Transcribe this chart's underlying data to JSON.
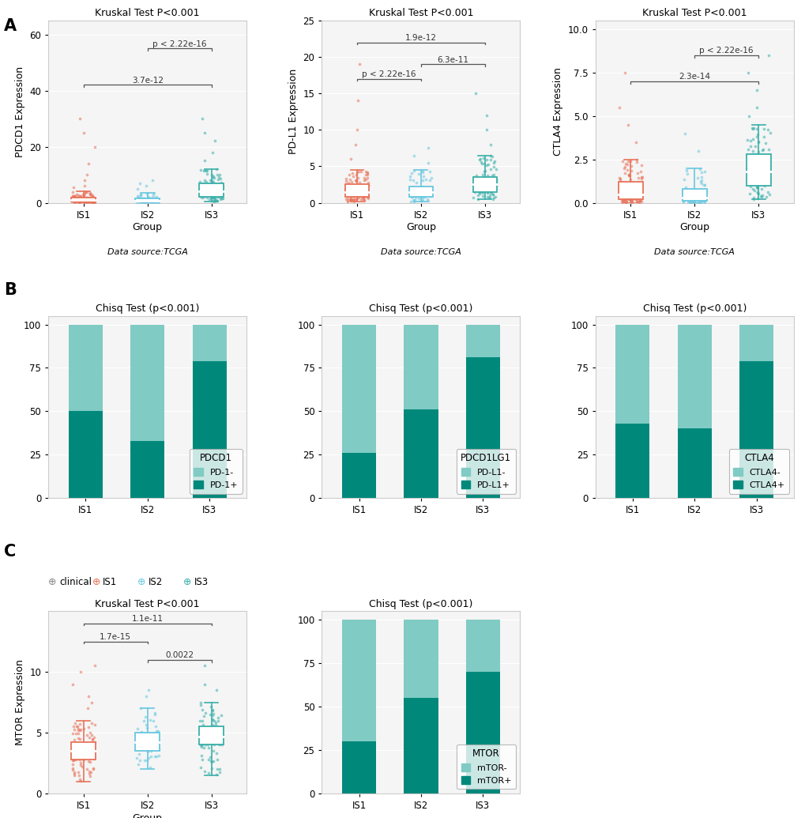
{
  "panel_A_title": "Kruskal Test P<0.001",
  "panel_B_title": "Chisq Test (p<0.001)",
  "panel_C_box_title": "Kruskal Test P<0.001",
  "panel_C_bar_title": "Chisq Test (p<0.001)",
  "groups": [
    "IS1",
    "IS2",
    "IS3"
  ],
  "colors": {
    "IS1": "#E8735A",
    "IS2": "#67C7E0",
    "IS3": "#3AAFA9"
  },
  "bar_pos_color": "#00897B",
  "bar_neg_color": "#80CBC4",
  "ylabel_A1": "PDCD1 Expression",
  "ylabel_A2": "PD-L1 Expression",
  "ylabel_A3": "CTLA4 Expression",
  "ylabel_C": "MTOR Expression",
  "xlabel": "Group",
  "datasource": "Data source:TCGA",
  "PDCD1_sig": [
    {
      "group1": "IS1",
      "group2": "IS3",
      "p": "3.7e-12",
      "y": 42,
      "level": 0
    },
    {
      "group1": "IS2",
      "group2": "IS3",
      "p": "p < 2.22e-16",
      "y": 55,
      "level": 1
    }
  ],
  "PDL1_sig": [
    {
      "group1": "IS1",
      "group2": "IS2",
      "p": "p < 2.22e-16",
      "y": 17,
      "level": 0
    },
    {
      "group1": "IS2",
      "group2": "IS3",
      "p": "6.3e-11",
      "y": 19,
      "level": 1
    },
    {
      "group1": "IS1",
      "group2": "IS3",
      "p": "1.9e-12",
      "y": 22,
      "level": 2
    }
  ],
  "CTLA4_sig": [
    {
      "group1": "IS1",
      "group2": "IS3",
      "p": "2.3e-14",
      "y": 7.0,
      "level": 0
    },
    {
      "group1": "IS2",
      "group2": "IS3",
      "p": "p < 2.22e-16",
      "y": 8.5,
      "level": 1
    }
  ],
  "MTOR_sig": [
    {
      "group1": "IS2",
      "group2": "IS3",
      "p": "0.0022",
      "y": 11.0,
      "level": 0
    },
    {
      "group1": "IS1",
      "group2": "IS2",
      "p": "1.7e-15",
      "y": 12.5,
      "level": 1
    },
    {
      "group1": "IS1",
      "group2": "IS3",
      "p": "1.1e-11",
      "y": 14.0,
      "level": 2
    }
  ],
  "PDCD1_boxes": {
    "IS1": {
      "median": 1.0,
      "q1": 0.5,
      "q3": 1.8,
      "whislo": 0.0,
      "whishi": 4.0,
      "scatter_lo": 0.0,
      "scatter_hi": 4.0,
      "n_main": 150,
      "fliers": [
        5.5,
        6.0,
        8.0,
        10.0,
        14.0,
        20.0,
        25.0,
        30.0
      ]
    },
    "IS2": {
      "median": 0.8,
      "q1": 0.3,
      "q3": 1.5,
      "whislo": 0.0,
      "whishi": 3.5,
      "n_main": 80,
      "scatter_lo": 0.0,
      "scatter_hi": 3.5,
      "fliers": [
        5.0,
        6.0,
        7.0,
        8.0
      ]
    },
    "IS3": {
      "median": 4.0,
      "q1": 2.0,
      "q3": 7.0,
      "whislo": 0.5,
      "whishi": 12.0,
      "n_main": 130,
      "scatter_lo": 0.5,
      "scatter_hi": 12.0,
      "fliers": [
        15.0,
        18.0,
        22.0,
        25.0,
        30.0
      ]
    }
  },
  "PDL1_boxes": {
    "IS1": {
      "median": 1.5,
      "q1": 0.8,
      "q3": 2.5,
      "whislo": 0.2,
      "whishi": 4.5,
      "n_main": 150,
      "scatter_lo": 0.2,
      "scatter_hi": 4.5,
      "fliers": [
        6.0,
        8.0,
        10.0,
        14.0,
        19.0
      ]
    },
    "IS2": {
      "median": 1.5,
      "q1": 0.8,
      "q3": 2.2,
      "whislo": 0.2,
      "whishi": 4.5,
      "n_main": 80,
      "scatter_lo": 0.2,
      "scatter_hi": 4.5,
      "fliers": [
        5.5,
        6.5,
        7.5
      ]
    },
    "IS3": {
      "median": 2.5,
      "q1": 1.5,
      "q3": 3.5,
      "whislo": 0.5,
      "whishi": 6.5,
      "n_main": 130,
      "scatter_lo": 0.5,
      "scatter_hi": 6.5,
      "fliers": [
        8.0,
        10.0,
        12.0,
        15.0
      ]
    }
  },
  "CTLA4_boxes": {
    "IS1": {
      "median": 0.5,
      "q1": 0.2,
      "q3": 1.2,
      "whislo": 0.0,
      "whishi": 2.5,
      "n_main": 150,
      "scatter_lo": 0.0,
      "scatter_hi": 2.5,
      "fliers": [
        3.5,
        4.5,
        5.5,
        7.5
      ]
    },
    "IS2": {
      "median": 0.3,
      "q1": 0.1,
      "q3": 0.8,
      "whislo": 0.0,
      "whishi": 2.0,
      "n_main": 80,
      "scatter_lo": 0.0,
      "scatter_hi": 2.0,
      "fliers": [
        3.0,
        4.0
      ]
    },
    "IS3": {
      "median": 1.8,
      "q1": 1.0,
      "q3": 2.8,
      "whislo": 0.2,
      "whishi": 4.5,
      "n_main": 130,
      "scatter_lo": 0.2,
      "scatter_hi": 4.5,
      "fliers": [
        5.0,
        5.5,
        6.5,
        7.5,
        8.5
      ]
    }
  },
  "MTOR_boxes": {
    "IS1": {
      "median": 3.5,
      "q1": 2.8,
      "q3": 4.2,
      "whislo": 1.0,
      "whishi": 6.0,
      "n_main": 150,
      "scatter_lo": 1.0,
      "scatter_hi": 6.0,
      "fliers": [
        7.0,
        7.5,
        8.0,
        9.0,
        10.0,
        10.5
      ]
    },
    "IS2": {
      "median": 4.2,
      "q1": 3.5,
      "q3": 5.0,
      "whislo": 2.0,
      "whishi": 7.0,
      "n_main": 80,
      "scatter_lo": 2.0,
      "scatter_hi": 7.0,
      "fliers": [
        8.0,
        8.5
      ]
    },
    "IS3": {
      "median": 4.7,
      "q1": 4.0,
      "q3": 5.5,
      "whislo": 1.5,
      "whishi": 7.5,
      "n_main": 130,
      "scatter_lo": 1.5,
      "scatter_hi": 7.5,
      "fliers": [
        8.5,
        9.0,
        10.5
      ]
    }
  },
  "PDCD1_bar": {
    "IS1": 50,
    "IS2": 33,
    "IS3": 79
  },
  "PDL1_bar": {
    "IS1": 26,
    "IS2": 51,
    "IS3": 81
  },
  "CTLA4_bar": {
    "IS1": 43,
    "IS2": 40,
    "IS3": 79
  },
  "MTOR_bar": {
    "IS1": 30,
    "IS2": 55,
    "IS3": 70
  },
  "ylim_PDCD1": [
    0,
    65
  ],
  "ylim_PDL1": [
    0,
    25
  ],
  "ylim_CTLA4": [
    0,
    10.5
  ],
  "ylim_MTOR": [
    0,
    15
  ],
  "yticks_PDCD1": [
    0,
    20,
    40,
    60
  ],
  "yticks_PDL1": [
    0,
    5,
    10,
    15,
    20,
    25
  ],
  "yticks_CTLA4": [
    0.0,
    2.5,
    5.0,
    7.5,
    10.0
  ],
  "yticks_MTOR": [
    0,
    5,
    10
  ]
}
